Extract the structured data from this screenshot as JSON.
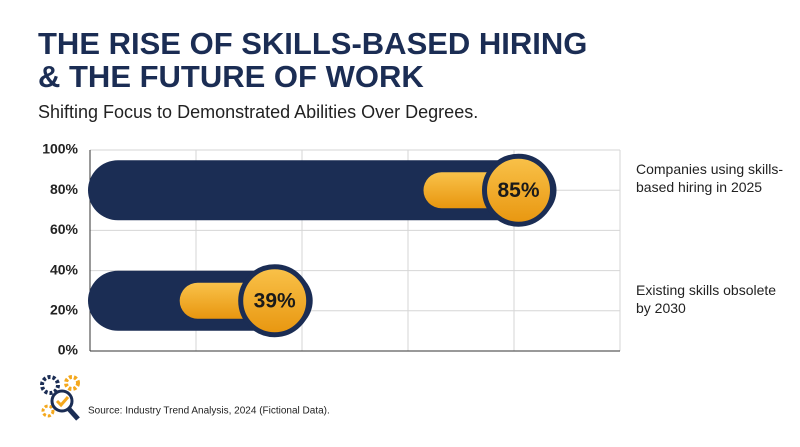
{
  "chart_data": {
    "type": "bar",
    "orientation": "horizontal",
    "title_lines": [
      "THE RISE OF SKILLS-BASED HIRING",
      "& THE FUTURE OF WORK"
    ],
    "subtitle": "Shifting Focus to Demonstrated Abilities Over Degrees.",
    "categories": [
      "Companies using skills-based hiring in 2025",
      "Existing skills obsolete by 2030"
    ],
    "values": [
      85,
      39
    ],
    "value_labels": [
      "85%",
      "39%"
    ],
    "color": "#1b2d54",
    "accent_color": "#f4a81d",
    "xlim": [
      0,
      100
    ],
    "xticks": [
      0,
      20,
      40,
      60,
      80,
      100
    ],
    "ylim": [
      0,
      100
    ],
    "yticks": [
      {
        "value": 0,
        "label": "0%"
      },
      {
        "value": 20,
        "label": "20%"
      },
      {
        "value": 40,
        "label": "40%"
      },
      {
        "value": 60,
        "label": "60%"
      },
      {
        "value": 80,
        "label": "80%"
      },
      {
        "value": 100,
        "label": "100%"
      }
    ],
    "grid": true,
    "source": "Source: Industry Trend Analysis, 2024 (Fictional Data)."
  }
}
